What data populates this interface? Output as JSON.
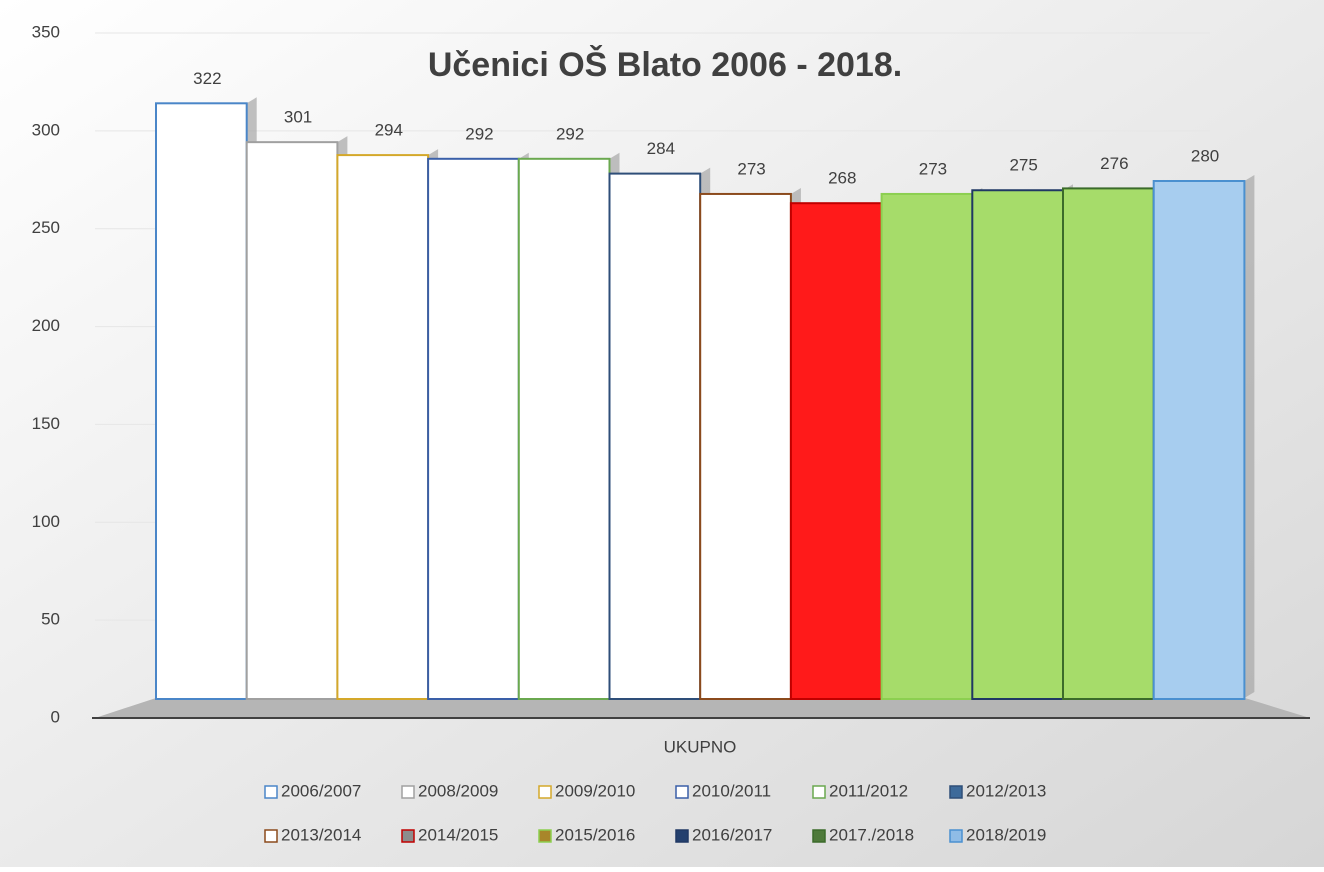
{
  "chart_data": {
    "type": "bar3d",
    "title": "Učenici OŠ  Blato 2006 -  2018.",
    "categories": [
      "UKUPNO"
    ],
    "series": [
      {
        "name": "2006/2007",
        "color": "#ffffff",
        "edge": "#4a86c8",
        "legend_color": "#ffffff",
        "values": [
          322
        ]
      },
      {
        "name": "2008/2009",
        "color": "#ffffff",
        "edge": "#a0a0a0",
        "legend_color": "#ffffff",
        "values": [
          301
        ]
      },
      {
        "name": "2009/2010",
        "color": "#ffffff",
        "edge": "#d4a82a",
        "legend_color": "#ffffff",
        "values": [
          294
        ]
      },
      {
        "name": "2010/2011",
        "color": "#ffffff",
        "edge": "#3a5fa8",
        "legend_color": "#ffffff",
        "values": [
          292
        ]
      },
      {
        "name": "2011/2012",
        "color": "#ffffff",
        "edge": "#6aa84f",
        "legend_color": "#ffffff",
        "values": [
          292
        ]
      },
      {
        "name": "2012/2013",
        "color": "#ffffff",
        "edge": "#2e4e78",
        "legend_color": "#3d6a9a",
        "values": [
          284
        ]
      },
      {
        "name": "2013/2014",
        "color": "#ffffff",
        "edge": "#8b4a1c",
        "legend_color": "#ffffff",
        "values": [
          273
        ]
      },
      {
        "name": "2014/2015",
        "color": "#ff1a1a",
        "edge": "#c00000",
        "legend_color": "#8c8c8c",
        "values": [
          268
        ]
      },
      {
        "name": "2015/2016",
        "color": "#a6dc6a",
        "edge": "#8ccf50",
        "legend_color": "#a8862a",
        "values": [
          273
        ]
      },
      {
        "name": "2016/2017",
        "color": "#a6dc6a",
        "edge": "#203864",
        "legend_color": "#24406e",
        "values": [
          275
        ]
      },
      {
        "name": "2017./2018",
        "color": "#a6dc6a",
        "edge": "#3b6b2a",
        "legend_color": "#4e7a3a",
        "values": [
          276
        ]
      },
      {
        "name": "2018/2019",
        "color": "#a7cdef",
        "edge": "#4a90d0",
        "legend_color": "#8fbce6",
        "values": [
          280
        ]
      }
    ],
    "ylim": [
      0,
      350
    ],
    "yticks": [
      0,
      50,
      100,
      150,
      200,
      250,
      300,
      350
    ],
    "grid": true
  }
}
